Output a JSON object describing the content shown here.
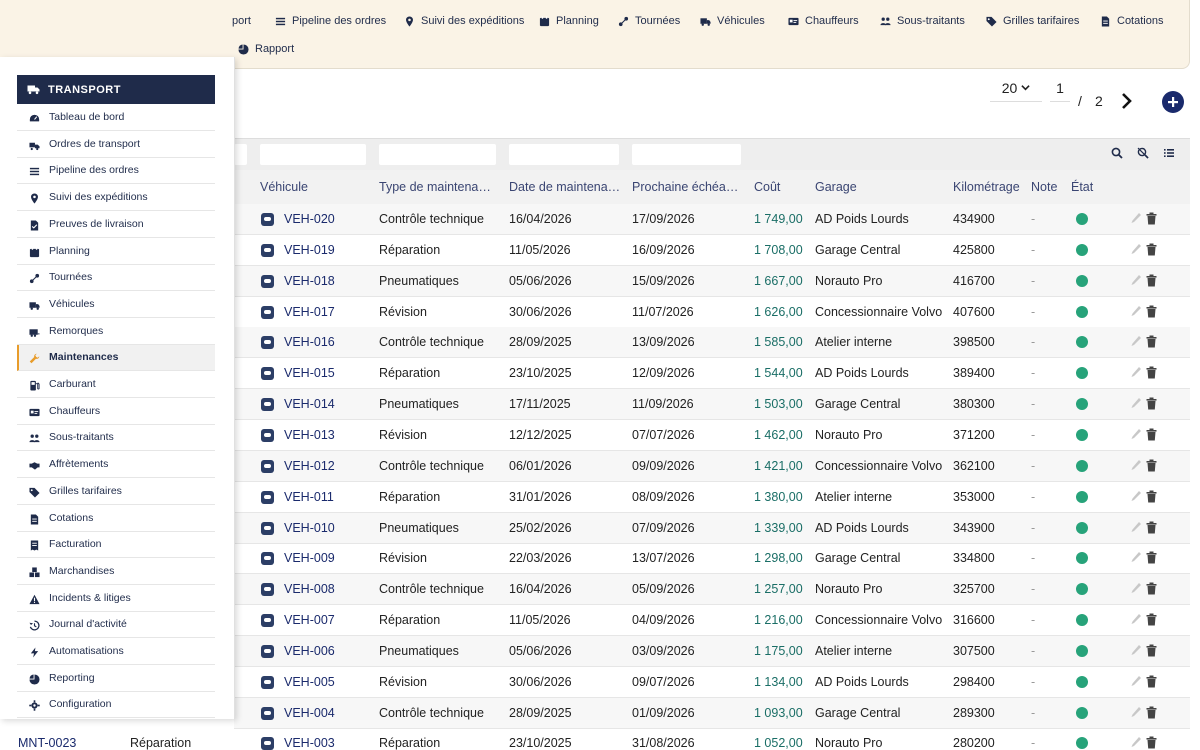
{
  "topbar": {
    "items": [
      {
        "label": "port",
        "icon": "transport-icon"
      },
      {
        "label": "Pipeline des ordres",
        "icon": "list-icon"
      },
      {
        "label": "Suivi des expéditions",
        "icon": "map-pin-icon"
      },
      {
        "label": "Planning",
        "icon": "calendar-icon"
      },
      {
        "label": "Tournées",
        "icon": "route-icon"
      },
      {
        "label": "Véhicules",
        "icon": "truck-icon"
      },
      {
        "label": "Chauffeurs",
        "icon": "id-card-icon"
      },
      {
        "label": "Sous-traitants",
        "icon": "people-icon"
      },
      {
        "label": "Grilles tarifaires",
        "icon": "tag-icon"
      },
      {
        "label": "Cotations",
        "icon": "document-icon"
      },
      {
        "label": "Rapport",
        "icon": "pie-chart-icon"
      }
    ]
  },
  "pager": {
    "page_size": "20",
    "current_page": "1",
    "separator": "/",
    "total_pages": "2"
  },
  "sidebar": {
    "title": "TRANSPORT",
    "items": [
      {
        "label": "Tableau de bord",
        "icon": "dashboard-icon"
      },
      {
        "label": "Ordres de transport",
        "icon": "truck-loading-icon"
      },
      {
        "label": "Pipeline des ordres",
        "icon": "list-icon"
      },
      {
        "label": "Suivi des expéditions",
        "icon": "map-pin-icon"
      },
      {
        "label": "Preuves de livraison",
        "icon": "document-check-icon"
      },
      {
        "label": "Planning",
        "icon": "calendar-icon"
      },
      {
        "label": "Tournées",
        "icon": "route-icon"
      },
      {
        "label": "Véhicules",
        "icon": "truck-icon"
      },
      {
        "label": "Remorques",
        "icon": "trailer-icon"
      },
      {
        "label": "Maintenances",
        "icon": "wrench-icon",
        "active": true
      },
      {
        "label": "Carburant",
        "icon": "fuel-icon"
      },
      {
        "label": "Chauffeurs",
        "icon": "id-card-icon"
      },
      {
        "label": "Sous-traitants",
        "icon": "people-icon"
      },
      {
        "label": "Affrètements",
        "icon": "handshake-icon"
      },
      {
        "label": "Grilles tarifaires",
        "icon": "tag-icon"
      },
      {
        "label": "Cotations",
        "icon": "document-icon"
      },
      {
        "label": "Facturation",
        "icon": "invoice-icon"
      },
      {
        "label": "Marchandises",
        "icon": "boxes-icon"
      },
      {
        "label": "Incidents & litiges",
        "icon": "warning-icon"
      },
      {
        "label": "Journal d'activité",
        "icon": "history-icon"
      },
      {
        "label": "Automatisations",
        "icon": "bolt-icon"
      },
      {
        "label": "Reporting",
        "icon": "pie-chart-icon"
      },
      {
        "label": "Configuration",
        "icon": "gear-icon"
      }
    ]
  },
  "table": {
    "columns": [
      "Véhicule",
      "Type de maintena…",
      "Date de maintena…",
      "Prochaine échéa…",
      "Coût",
      "Garage",
      "Kilométrage",
      "Note",
      "État"
    ],
    "rows": [
      {
        "vehicle": "VEH-020",
        "type": "Contrôle technique",
        "date": "16/04/2026",
        "next": "17/09/2026",
        "cost": "1 749,00",
        "garage": "AD Poids Lourds",
        "km": "434900",
        "note": "-"
      },
      {
        "vehicle": "VEH-019",
        "type": "Réparation",
        "date": "11/05/2026",
        "next": "16/09/2026",
        "cost": "1 708,00",
        "garage": "Garage Central",
        "km": "425800",
        "note": "-"
      },
      {
        "vehicle": "VEH-018",
        "type": "Pneumatiques",
        "date": "05/06/2026",
        "next": "15/09/2026",
        "cost": "1 667,00",
        "garage": "Norauto Pro",
        "km": "416700",
        "note": "-"
      },
      {
        "vehicle": "VEH-017",
        "type": "Révision",
        "date": "30/06/2026",
        "next": "11/07/2026",
        "cost": "1 626,00",
        "garage": "Concessionnaire Volvo",
        "km": "407600",
        "note": "-"
      },
      {
        "vehicle": "VEH-016",
        "type": "Contrôle technique",
        "date": "28/09/2025",
        "next": "13/09/2026",
        "cost": "1 585,00",
        "garage": "Atelier interne",
        "km": "398500",
        "note": "-"
      },
      {
        "vehicle": "VEH-015",
        "type": "Réparation",
        "date": "23/10/2025",
        "next": "12/09/2026",
        "cost": "1 544,00",
        "garage": "AD Poids Lourds",
        "km": "389400",
        "note": "-"
      },
      {
        "vehicle": "VEH-014",
        "type": "Pneumatiques",
        "date": "17/11/2025",
        "next": "11/09/2026",
        "cost": "1 503,00",
        "garage": "Garage Central",
        "km": "380300",
        "note": "-"
      },
      {
        "vehicle": "VEH-013",
        "type": "Révision",
        "date": "12/12/2025",
        "next": "07/07/2026",
        "cost": "1 462,00",
        "garage": "Norauto Pro",
        "km": "371200",
        "note": "-"
      },
      {
        "vehicle": "VEH-012",
        "type": "Contrôle technique",
        "date": "06/01/2026",
        "next": "09/09/2026",
        "cost": "1 421,00",
        "garage": "Concessionnaire Volvo",
        "km": "362100",
        "note": "-"
      },
      {
        "vehicle": "VEH-011",
        "type": "Réparation",
        "date": "31/01/2026",
        "next": "08/09/2026",
        "cost": "1 380,00",
        "garage": "Atelier interne",
        "km": "353000",
        "note": "-"
      },
      {
        "vehicle": "VEH-010",
        "type": "Pneumatiques",
        "date": "25/02/2026",
        "next": "07/09/2026",
        "cost": "1 339,00",
        "garage": "AD Poids Lourds",
        "km": "343900",
        "note": "-"
      },
      {
        "vehicle": "VEH-009",
        "type": "Révision",
        "date": "22/03/2026",
        "next": "13/07/2026",
        "cost": "1 298,00",
        "garage": "Garage Central",
        "km": "334800",
        "note": "-"
      },
      {
        "vehicle": "VEH-008",
        "type": "Contrôle technique",
        "date": "16/04/2026",
        "next": "05/09/2026",
        "cost": "1 257,00",
        "garage": "Norauto Pro",
        "km": "325700",
        "note": "-"
      },
      {
        "vehicle": "VEH-007",
        "type": "Réparation",
        "date": "11/05/2026",
        "next": "04/09/2026",
        "cost": "1 216,00",
        "garage": "Concessionnaire Volvo",
        "km": "316600",
        "note": "-"
      },
      {
        "vehicle": "VEH-006",
        "type": "Pneumatiques",
        "date": "05/06/2026",
        "next": "03/09/2026",
        "cost": "1 175,00",
        "garage": "Atelier interne",
        "km": "307500",
        "note": "-"
      },
      {
        "vehicle": "VEH-005",
        "type": "Révision",
        "date": "30/06/2026",
        "next": "09/07/2026",
        "cost": "1 134,00",
        "garage": "AD Poids Lourds",
        "km": "298400",
        "note": "-"
      },
      {
        "vehicle": "VEH-004",
        "type": "Contrôle technique",
        "date": "28/09/2025",
        "next": "01/09/2026",
        "cost": "1 093,00",
        "garage": "Garage Central",
        "km": "289300",
        "note": "-"
      },
      {
        "vehicle": "VEH-003",
        "type": "Réparation",
        "date": "23/10/2025",
        "next": "31/08/2026",
        "cost": "1 052,00",
        "garage": "Norauto Pro",
        "km": "280200",
        "note": "-"
      }
    ],
    "partial_row": {
      "ref": "MNT-0023",
      "type": "Réparation"
    }
  },
  "colors": {
    "navy": "#1f2b4a",
    "accent": "#e89c2b",
    "status_ok": "#27a37a",
    "cost": "#1a6e66"
  }
}
